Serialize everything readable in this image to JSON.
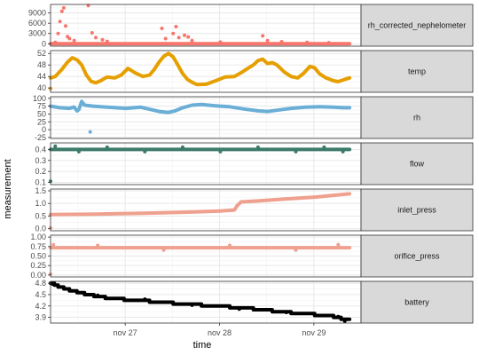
{
  "chart_data": {
    "type": "scatter",
    "xlabel": "time",
    "ylabel": "measurement",
    "x_range": [
      "2020-11-26 05:00",
      "2020-11-29 12:00"
    ],
    "x_ticks": [
      {
        "label": "nov 27",
        "value": "2020-11-27 00:00"
      },
      {
        "label": "nov 28",
        "value": "2020-11-28 00:00"
      },
      {
        "label": "nov 29",
        "value": "2020-11-29 00:00"
      }
    ],
    "grid": true,
    "legend": "none",
    "facets": [
      {
        "name": "rh_corrected_nephelometer",
        "color": "#F8766D",
        "ylim": [
          -700,
          11500
        ],
        "y_ticks": [
          0,
          3000,
          6000,
          9000
        ],
        "y_tick_labels": [
          "0",
          "3000",
          "6000",
          "9000"
        ],
        "baseline": [
          [
            0.0,
            0
          ],
          [
            3.17,
            0
          ]
        ],
        "points": [
          [
            0.05,
            400
          ],
          [
            0.08,
            3000
          ],
          [
            0.1,
            6500
          ],
          [
            0.12,
            9500
          ],
          [
            0.14,
            10500
          ],
          [
            0.16,
            5200
          ],
          [
            0.18,
            2100
          ],
          [
            0.2,
            1500
          ],
          [
            0.25,
            900
          ],
          [
            0.4,
            11200
          ],
          [
            0.44,
            3200
          ],
          [
            0.48,
            1800
          ],
          [
            0.55,
            1200
          ],
          [
            0.6,
            700
          ],
          [
            1.18,
            4500
          ],
          [
            1.22,
            1500
          ],
          [
            1.3,
            3000
          ],
          [
            1.33,
            5000
          ],
          [
            1.36,
            1800
          ],
          [
            1.42,
            2500
          ],
          [
            1.46,
            2000
          ],
          [
            1.5,
            900
          ],
          [
            1.8,
            500
          ],
          [
            2.25,
            2300
          ],
          [
            2.3,
            900
          ],
          [
            2.45,
            600
          ],
          [
            2.72,
            400
          ],
          [
            2.95,
            300
          ]
        ]
      },
      {
        "name": "temp",
        "color": "#E69F00",
        "ylim": [
          38.5,
          53
        ],
        "y_ticks": [
          40,
          44,
          48,
          52
        ],
        "y_tick_labels": [
          "40",
          "44",
          "48",
          "52"
        ],
        "baseline": [
          [
            0.0,
            43.5
          ],
          [
            0.05,
            44.0
          ],
          [
            0.12,
            46.5
          ],
          [
            0.18,
            49.0
          ],
          [
            0.23,
            50.5
          ],
          [
            0.28,
            49.8
          ],
          [
            0.33,
            48.0
          ],
          [
            0.38,
            44.5
          ],
          [
            0.43,
            42.3
          ],
          [
            0.48,
            41.8
          ],
          [
            0.53,
            42.5
          ],
          [
            0.6,
            43.8
          ],
          [
            0.68,
            43.5
          ],
          [
            0.75,
            44.5
          ],
          [
            0.82,
            46.8
          ],
          [
            0.9,
            45.2
          ],
          [
            0.98,
            44.0
          ],
          [
            1.05,
            44.5
          ],
          [
            1.1,
            46.5
          ],
          [
            1.15,
            49.0
          ],
          [
            1.2,
            51.0
          ],
          [
            1.25,
            52.0
          ],
          [
            1.3,
            50.8
          ],
          [
            1.35,
            48.0
          ],
          [
            1.4,
            45.0
          ],
          [
            1.45,
            43.0
          ],
          [
            1.5,
            42.0
          ],
          [
            1.55,
            41.2
          ],
          [
            1.65,
            41.3
          ],
          [
            1.75,
            42.5
          ],
          [
            1.85,
            43.8
          ],
          [
            1.95,
            44.0
          ],
          [
            2.03,
            45.5
          ],
          [
            2.1,
            47.0
          ],
          [
            2.15,
            48.0
          ],
          [
            2.2,
            49.5
          ],
          [
            2.25,
            50.0
          ],
          [
            2.3,
            48.5
          ],
          [
            2.35,
            48.8
          ],
          [
            2.4,
            48.0
          ],
          [
            2.48,
            45.5
          ],
          [
            2.55,
            44.0
          ],
          [
            2.62,
            43.5
          ],
          [
            2.68,
            45.0
          ],
          [
            2.75,
            47.5
          ],
          [
            2.8,
            47.0
          ],
          [
            2.85,
            45.0
          ],
          [
            2.92,
            43.5
          ],
          [
            3.0,
            42.5
          ],
          [
            3.05,
            42.2
          ],
          [
            3.1,
            42.8
          ],
          [
            3.17,
            43.5
          ]
        ],
        "points": [
          [
            0.0,
            39.8
          ]
        ]
      },
      {
        "name": "rh",
        "color": "#6BAED6",
        "ylim": [
          -28,
          105
        ],
        "y_ticks": [
          -25,
          0,
          25,
          50,
          75,
          100
        ],
        "y_tick_labels": [
          "-25",
          "0",
          "25",
          "50",
          "75",
          "100"
        ],
        "baseline": [
          [
            0.0,
            75
          ],
          [
            0.1,
            70
          ],
          [
            0.2,
            68
          ],
          [
            0.25,
            72
          ],
          [
            0.28,
            60
          ],
          [
            0.3,
            64
          ],
          [
            0.33,
            90
          ],
          [
            0.36,
            78
          ],
          [
            0.45,
            75
          ],
          [
            0.6,
            72
          ],
          [
            0.8,
            68
          ],
          [
            0.95,
            72
          ],
          [
            1.05,
            65
          ],
          [
            1.15,
            58
          ],
          [
            1.25,
            55
          ],
          [
            1.32,
            60
          ],
          [
            1.4,
            70
          ],
          [
            1.5,
            78
          ],
          [
            1.6,
            80
          ],
          [
            1.75,
            76
          ],
          [
            1.9,
            73
          ],
          [
            2.05,
            66
          ],
          [
            2.2,
            60
          ],
          [
            2.3,
            58
          ],
          [
            2.4,
            62
          ],
          [
            2.55,
            68
          ],
          [
            2.7,
            72
          ],
          [
            2.85,
            73
          ],
          [
            3.0,
            72
          ],
          [
            3.1,
            70
          ],
          [
            3.17,
            70
          ]
        ],
        "points": [
          [
            0.42,
            -7
          ]
        ]
      },
      {
        "name": "flow",
        "color": "#3C7A6A",
        "ylim": [
          0.08,
          0.46
        ],
        "y_ticks": [
          0.1,
          0.2,
          0.3,
          0.4
        ],
        "y_tick_labels": [
          "0.1",
          "0.2",
          "0.3",
          "0.4"
        ],
        "baseline": [
          [
            0.0,
            0.4
          ],
          [
            3.17,
            0.4
          ]
        ],
        "points": [
          [
            0.0,
            0.11
          ],
          [
            0.05,
            0.43
          ],
          [
            0.3,
            0.38
          ],
          [
            0.6,
            0.42
          ],
          [
            1.0,
            0.38
          ],
          [
            1.4,
            0.42
          ],
          [
            1.8,
            0.38
          ],
          [
            2.2,
            0.42
          ],
          [
            2.6,
            0.38
          ],
          [
            2.9,
            0.42
          ],
          [
            3.1,
            0.38
          ]
        ]
      },
      {
        "name": "inlet_press",
        "color": "#EFA08E",
        "ylim": [
          -0.08,
          1.57
        ],
        "y_ticks": [
          0.0,
          0.5,
          1.0,
          1.5
        ],
        "y_tick_labels": [
          "0.0",
          "0.5",
          "1.0",
          "1.5"
        ],
        "baseline": [
          [
            0.0,
            0.56
          ],
          [
            0.5,
            0.58
          ],
          [
            1.0,
            0.61
          ],
          [
            1.5,
            0.66
          ],
          [
            1.8,
            0.7
          ],
          [
            1.95,
            0.74
          ],
          [
            1.98,
            0.92
          ],
          [
            2.02,
            1.06
          ],
          [
            2.2,
            1.1
          ],
          [
            2.5,
            1.18
          ],
          [
            2.8,
            1.25
          ],
          [
            3.0,
            1.32
          ],
          [
            3.17,
            1.38
          ]
        ],
        "points": [
          [
            0.0,
            0.03
          ]
        ]
      },
      {
        "name": "orifice_press",
        "color": "#EFA08E",
        "ylim": [
          -0.05,
          1.05
        ],
        "y_ticks": [
          0.0,
          0.25,
          0.5,
          0.75,
          1.0
        ],
        "y_tick_labels": [
          "0.00",
          "0.25",
          "0.50",
          "0.75",
          "1.00"
        ],
        "baseline": [
          [
            0.0,
            0.72
          ],
          [
            3.17,
            0.72
          ]
        ],
        "points": [
          [
            0.0,
            0.02
          ],
          [
            0.03,
            0.8
          ],
          [
            0.5,
            0.78
          ],
          [
            1.2,
            0.66
          ],
          [
            1.9,
            0.78
          ],
          [
            2.6,
            0.66
          ],
          [
            3.05,
            0.8
          ]
        ]
      },
      {
        "name": "battery",
        "color": "#000000",
        "ylim": [
          3.75,
          4.85
        ],
        "y_ticks": [
          3.9,
          4.2,
          4.5,
          4.8
        ],
        "y_tick_labels": [
          "3.9",
          "4.2",
          "4.5",
          "4.8"
        ],
        "baseline": [
          [
            0.0,
            4.8
          ],
          [
            0.04,
            4.8
          ],
          [
            0.04,
            4.75
          ],
          [
            0.08,
            4.75
          ],
          [
            0.08,
            4.7
          ],
          [
            0.14,
            4.7
          ],
          [
            0.14,
            4.65
          ],
          [
            0.2,
            4.65
          ],
          [
            0.2,
            4.6
          ],
          [
            0.28,
            4.6
          ],
          [
            0.28,
            4.55
          ],
          [
            0.36,
            4.55
          ],
          [
            0.36,
            4.5
          ],
          [
            0.46,
            4.5
          ],
          [
            0.46,
            4.45
          ],
          [
            0.58,
            4.45
          ],
          [
            0.58,
            4.4
          ],
          [
            0.78,
            4.4
          ],
          [
            0.78,
            4.35
          ],
          [
            1.05,
            4.35
          ],
          [
            1.05,
            4.3
          ],
          [
            1.3,
            4.3
          ],
          [
            1.3,
            4.25
          ],
          [
            1.6,
            4.25
          ],
          [
            1.6,
            4.2
          ],
          [
            1.9,
            4.2
          ],
          [
            1.9,
            4.15
          ],
          [
            2.15,
            4.15
          ],
          [
            2.15,
            4.1
          ],
          [
            2.35,
            4.1
          ],
          [
            2.35,
            4.05
          ],
          [
            2.55,
            4.05
          ],
          [
            2.55,
            4.0
          ],
          [
            2.8,
            4.0
          ],
          [
            2.8,
            3.95
          ],
          [
            3.0,
            3.95
          ],
          [
            3.0,
            3.9
          ],
          [
            3.08,
            3.9
          ],
          [
            3.08,
            3.85
          ],
          [
            3.17,
            3.85
          ]
        ],
        "points": [
          [
            0.02,
            4.78
          ],
          [
            0.5,
            4.48
          ],
          [
            1.0,
            4.38
          ],
          [
            1.5,
            4.22
          ],
          [
            2.0,
            4.12
          ],
          [
            2.5,
            4.03
          ],
          [
            3.05,
            3.92
          ],
          [
            3.12,
            3.8
          ]
        ]
      }
    ]
  }
}
